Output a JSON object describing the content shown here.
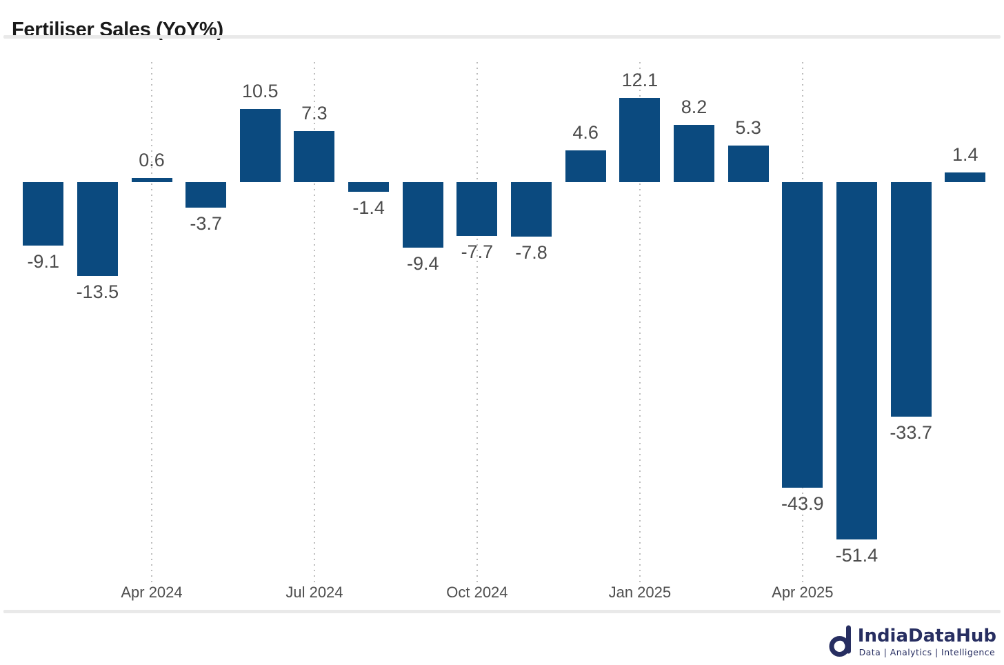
{
  "page": {
    "title": "Fertiliser Sales (YoY%)"
  },
  "chart_data": {
    "type": "bar",
    "title": "Fertiliser Sales (YoY%)",
    "values": [
      -9.1,
      -13.5,
      0.6,
      -3.7,
      10.5,
      7.3,
      -1.4,
      -9.4,
      -7.7,
      -7.8,
      4.6,
      12.1,
      8.2,
      5.3,
      -43.9,
      -51.4,
      -33.7,
      1.4
    ],
    "data_labels": [
      "-9.1",
      "-13.5",
      "0.6",
      "-3.7",
      "10.5",
      "7.3",
      "-1.4",
      "-9.4",
      "-7.7",
      "-7.8",
      "4.6",
      "12.1",
      "8.2",
      "5.3",
      "-43.9",
      "-51.4",
      "-33.7",
      "1.4"
    ],
    "x_ticks": [
      {
        "label": "Apr 2024",
        "bar_index": 2
      },
      {
        "label": "Jul 2024",
        "bar_index": 5
      },
      {
        "label": "Oct 2024",
        "bar_index": 8
      },
      {
        "label": "Jan 2025",
        "bar_index": 11
      },
      {
        "label": "Apr 2025",
        "bar_index": 14
      }
    ],
    "xlabel": "",
    "ylabel": "",
    "ylim_implied": [
      -58,
      17
    ],
    "y_axis_visible": false,
    "grid": "vertical dotted lines at x ticks",
    "legend": "none",
    "bar_color": "#0b4a7f",
    "data_label_color": "#4c4c4c",
    "tick_label_color": "#4d4d4d",
    "gridline_color": "#bcbcbc"
  },
  "footer": {
    "brand": "IndiaDataHub",
    "tagline": "Data | Analytics | Intelligence",
    "brand_color": "#272e61"
  }
}
